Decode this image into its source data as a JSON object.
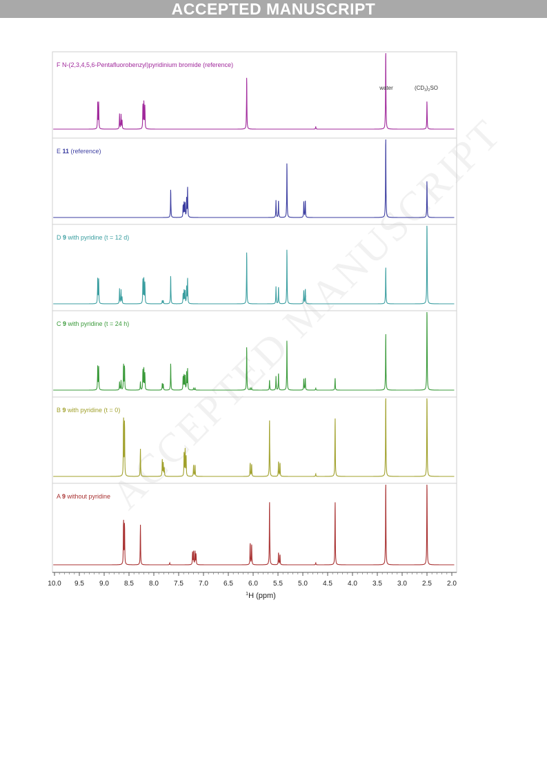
{
  "banner": "ACCEPTED MANUSCRIPT",
  "watermark": "ACCEPTED MANUSCRIPT",
  "chart_data": {
    "type": "line",
    "xlabel": "1H (ppm)",
    "xlabel_sup": "1",
    "xlabel_main": "H (ppm)",
    "xlim": [
      10.0,
      2.0
    ],
    "x_ticks": [
      "10.0",
      "9.5",
      "9.0",
      "8.5",
      "8.0",
      "7.5",
      "7.0",
      "6.5",
      "6.0",
      "5.5",
      "5.0",
      "4.5",
      "4.0",
      "3.5",
      "3.0",
      "2.5",
      "2.0"
    ],
    "annotations": [
      "water",
      "(CD3)2SO"
    ],
    "series": [
      {
        "letter": "F",
        "bold": "",
        "name": "N-(2,3,4,5,6-Pentafluorobenzyl)pyridinium bromide (reference)",
        "color": "#a0289b",
        "peaks": [
          [
            9.13,
            0.4
          ],
          [
            9.11,
            0.38
          ],
          [
            8.69,
            0.22
          ],
          [
            8.66,
            0.21
          ],
          [
            8.64,
            0.13
          ],
          [
            8.22,
            0.36
          ],
          [
            8.2,
            0.4
          ],
          [
            8.18,
            0.33
          ],
          [
            6.13,
            0.78
          ],
          [
            4.74,
            0.04
          ],
          [
            3.33,
            1.25
          ],
          [
            2.5,
            0.42
          ]
        ]
      },
      {
        "letter": "E",
        "bold": "11",
        "name": "(reference)",
        "color": "#3b3da0",
        "peaks": [
          [
            7.66,
            0.42
          ],
          [
            7.41,
            0.18
          ],
          [
            7.39,
            0.22
          ],
          [
            7.37,
            0.2
          ],
          [
            7.34,
            0.27
          ],
          [
            7.32,
            0.45
          ],
          [
            5.54,
            0.25
          ],
          [
            5.49,
            0.25
          ],
          [
            5.32,
            0.82
          ],
          [
            4.98,
            0.24
          ],
          [
            4.95,
            0.25
          ],
          [
            3.33,
            1.25
          ],
          [
            2.5,
            0.55
          ]
        ]
      },
      {
        "letter": "D",
        "bold": "9",
        "name": "with pyridine (t = 12 d)",
        "color": "#3a9ea0",
        "peaks": [
          [
            9.13,
            0.38
          ],
          [
            9.11,
            0.35
          ],
          [
            8.69,
            0.22
          ],
          [
            8.66,
            0.2
          ],
          [
            8.64,
            0.1
          ],
          [
            8.22,
            0.36
          ],
          [
            8.2,
            0.37
          ],
          [
            8.18,
            0.3
          ],
          [
            7.83,
            0.05
          ],
          [
            7.81,
            0.05
          ],
          [
            7.66,
            0.42
          ],
          [
            7.41,
            0.15
          ],
          [
            7.39,
            0.2
          ],
          [
            7.37,
            0.18
          ],
          [
            7.34,
            0.24
          ],
          [
            7.32,
            0.38
          ],
          [
            6.13,
            0.78
          ],
          [
            5.54,
            0.25
          ],
          [
            5.49,
            0.25
          ],
          [
            5.32,
            0.82
          ],
          [
            4.98,
            0.2
          ],
          [
            4.95,
            0.22
          ],
          [
            3.33,
            0.55
          ],
          [
            2.5,
            1.3
          ]
        ]
      },
      {
        "letter": "C",
        "bold": "9",
        "name": "with pyridine (t = 24 h)",
        "color": "#3a9a3a",
        "peaks": [
          [
            9.13,
            0.36
          ],
          [
            9.11,
            0.33
          ],
          [
            8.69,
            0.12
          ],
          [
            8.66,
            0.14
          ],
          [
            8.61,
            0.38
          ],
          [
            8.59,
            0.35
          ],
          [
            8.27,
            0.12
          ],
          [
            8.22,
            0.3
          ],
          [
            8.2,
            0.32
          ],
          [
            8.18,
            0.24
          ],
          [
            7.83,
            0.1
          ],
          [
            7.81,
            0.09
          ],
          [
            7.66,
            0.4
          ],
          [
            7.41,
            0.2
          ],
          [
            7.39,
            0.22
          ],
          [
            7.37,
            0.2
          ],
          [
            7.34,
            0.25
          ],
          [
            7.32,
            0.32
          ],
          [
            7.2,
            0.03
          ],
          [
            7.17,
            0.03
          ],
          [
            6.13,
            0.65
          ],
          [
            6.06,
            0.03
          ],
          [
            6.03,
            0.03
          ],
          [
            5.67,
            0.15
          ],
          [
            5.54,
            0.2
          ],
          [
            5.49,
            0.25
          ],
          [
            5.32,
            0.75
          ],
          [
            4.98,
            0.17
          ],
          [
            4.95,
            0.18
          ],
          [
            4.74,
            0.03
          ],
          [
            4.35,
            0.18
          ],
          [
            3.33,
            0.85
          ],
          [
            2.5,
            1.3
          ]
        ]
      },
      {
        "letter": "B",
        "bold": "9",
        "name": "with pyridine (t = 0)",
        "color": "#a0a02a",
        "peaks": [
          [
            8.61,
            0.85
          ],
          [
            8.59,
            0.8
          ],
          [
            8.27,
            0.4
          ],
          [
            7.83,
            0.25
          ],
          [
            7.81,
            0.2
          ],
          [
            7.79,
            0.12
          ],
          [
            7.39,
            0.35
          ],
          [
            7.37,
            0.38
          ],
          [
            7.35,
            0.3
          ],
          [
            7.2,
            0.17
          ],
          [
            7.17,
            0.17
          ],
          [
            6.06,
            0.2
          ],
          [
            6.03,
            0.18
          ],
          [
            5.67,
            0.85
          ],
          [
            5.49,
            0.22
          ],
          [
            5.46,
            0.2
          ],
          [
            4.74,
            0.04
          ],
          [
            4.35,
            0.88
          ],
          [
            3.33,
            1.3
          ],
          [
            2.5,
            1.3
          ]
        ]
      },
      {
        "letter": "A",
        "bold": "9",
        "name": "without pyridine",
        "color": "#a83030",
        "peaks": [
          [
            8.61,
            0.65
          ],
          [
            8.59,
            0.6
          ],
          [
            8.27,
            0.58
          ],
          [
            7.68,
            0.03
          ],
          [
            7.22,
            0.18
          ],
          [
            7.2,
            0.2
          ],
          [
            7.17,
            0.2
          ],
          [
            7.15,
            0.16
          ],
          [
            6.06,
            0.32
          ],
          [
            6.03,
            0.3
          ],
          [
            5.67,
            0.95
          ],
          [
            5.49,
            0.18
          ],
          [
            5.46,
            0.15
          ],
          [
            4.74,
            0.03
          ],
          [
            4.35,
            0.95
          ],
          [
            3.33,
            1.3
          ],
          [
            2.5,
            1.3
          ]
        ]
      }
    ]
  }
}
